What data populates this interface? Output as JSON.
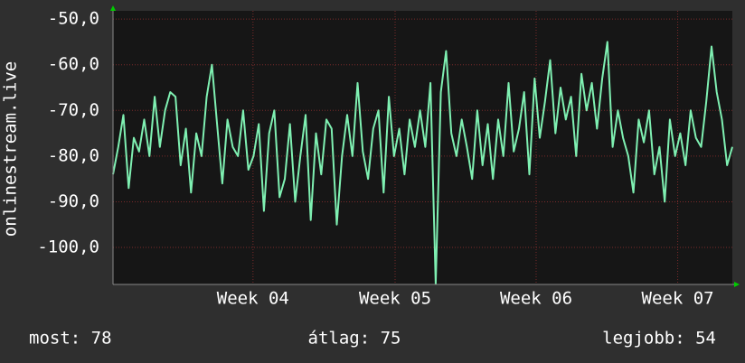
{
  "chart_data": {
    "type": "line",
    "y_label": "onlinestream.live",
    "series": [
      {
        "color": "#7ff0b2",
        "values": [
          -84,
          -78,
          -71,
          -87,
          -76,
          -79,
          -72,
          -80,
          -67,
          -78,
          -70,
          -66,
          -67,
          -82,
          -74,
          -88,
          -75,
          -80,
          -67,
          -60,
          -73,
          -86,
          -72,
          -78,
          -80,
          -70,
          -83,
          -80,
          -73,
          -92,
          -75,
          -70,
          -89,
          -85,
          -73,
          -90,
          -80,
          -71,
          -94,
          -75,
          -84,
          -72,
          -74,
          -95,
          -80,
          -71,
          -80,
          -64,
          -79,
          -85,
          -74,
          -70,
          -88,
          -67,
          -80,
          -74,
          -84,
          -72,
          -78,
          -70,
          -78,
          -64,
          -108,
          -66,
          -57,
          -75,
          -80,
          -72,
          -78,
          -85,
          -70,
          -82,
          -73,
          -85,
          -72,
          -80,
          -64,
          -79,
          -74,
          -66,
          -84,
          -63,
          -76,
          -68,
          -59,
          -75,
          -65,
          -72,
          -67,
          -80,
          -62,
          -70,
          -64,
          -74,
          -63,
          -55,
          -78,
          -70,
          -76,
          -80,
          -88,
          -72,
          -77,
          -70,
          -84,
          -78,
          -90,
          -72,
          -80,
          -75,
          -82,
          -70,
          -76,
          -78,
          -68,
          -56,
          -66,
          -72,
          -82,
          -78
        ]
      }
    ],
    "xlim": [
      0,
      119
    ],
    "xticks": [
      {
        "value": 26.9,
        "label": "Week 04"
      },
      {
        "value": 54.2,
        "label": "Week 05"
      },
      {
        "value": 81.3,
        "label": "Week 06"
      },
      {
        "value": 108.5,
        "label": "Week 07"
      }
    ],
    "ylim": [
      -108.1,
      -48.2
    ],
    "yticks": [
      {
        "value": -50,
        "label": "-50,0"
      },
      {
        "value": -60,
        "label": "-60,0"
      },
      {
        "value": -70,
        "label": "-70,0"
      },
      {
        "value": -80,
        "label": "-80,0"
      },
      {
        "value": -90,
        "label": "-90,0"
      },
      {
        "value": -100,
        "label": "-100,0"
      }
    ],
    "grid": true,
    "footer": [
      "most: 78",
      "átlag: 75",
      "legjobb: 54"
    ]
  }
}
